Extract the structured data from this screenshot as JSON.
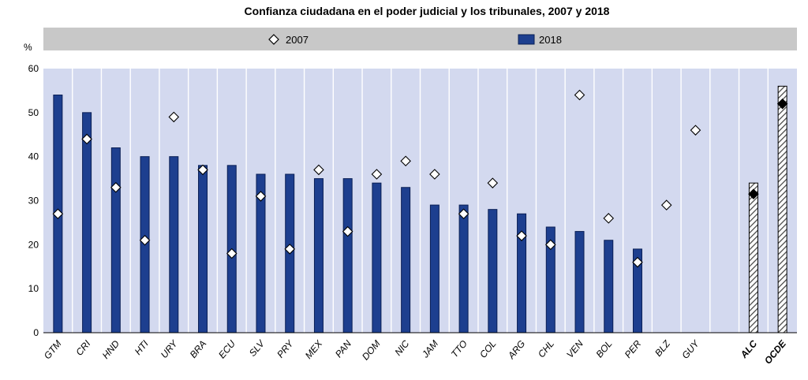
{
  "chart_data": {
    "type": "bar",
    "title": "Confianza ciudadana en el poder judicial y los tribunales, 2007 y 2018",
    "ylabel": "%",
    "xlabel": "",
    "ylim": [
      0,
      60
    ],
    "yticks": [
      0,
      10,
      20,
      30,
      40,
      50,
      60
    ],
    "grid": false,
    "legend_position": "top",
    "colors": {
      "plot_bg": "#d3d9ef",
      "legend_bg": "#c8c8c8",
      "bar_2018": "#1d3f8f",
      "bar_edge": "#0a1f55",
      "marker_2007": "#ffffff",
      "marker_aggregate": "#000000",
      "gridline": "#ffffff",
      "hatch": "#404040"
    },
    "categories": [
      "GTM",
      "CRI",
      "HND",
      "HTI",
      "URY",
      "BRA",
      "ECU",
      "SLV",
      "PRY",
      "MEX",
      "PAN",
      "DOM",
      "NIC",
      "JAM",
      "TTO",
      "COL",
      "ARG",
      "CHL",
      "VEN",
      "BOL",
      "PER",
      "BLZ",
      "GUY",
      "",
      "ALC",
      "OCDE"
    ],
    "aggregate_categories": [
      "ALC",
      "OCDE"
    ],
    "series": [
      {
        "name": "2007",
        "kind": "diamond",
        "values": [
          27,
          44,
          33,
          21,
          49,
          37,
          18,
          31,
          19,
          37,
          23,
          36,
          39,
          36,
          27,
          34,
          22,
          20,
          54,
          26,
          16,
          29,
          46,
          null,
          31.5,
          52
        ]
      },
      {
        "name": "2018",
        "kind": "bar",
        "values": [
          54,
          50,
          42,
          40,
          40,
          38,
          38,
          36,
          36,
          35,
          35,
          34,
          33,
          29,
          29,
          28,
          27,
          24,
          23,
          21,
          19,
          null,
          null,
          null,
          34,
          56
        ]
      }
    ]
  }
}
